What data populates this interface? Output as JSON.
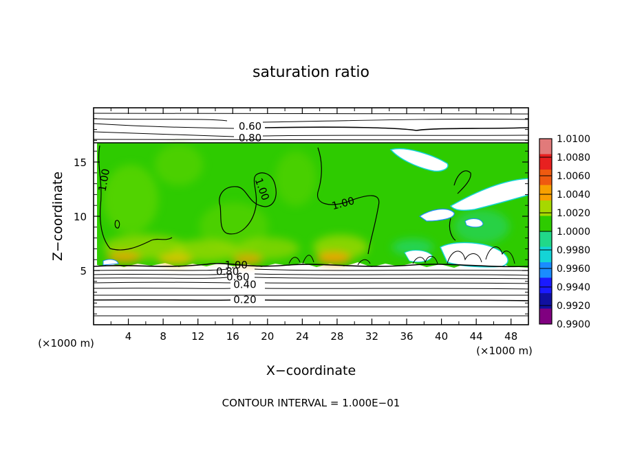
{
  "chart_data": {
    "type": "heatmap",
    "title": "saturation ratio",
    "xlabel": "X−coordinate",
    "ylabel": "Z−coordinate",
    "x_unit_left": "(×1000 m)",
    "x_unit_right": "(×1000 m)",
    "xlim": [
      0,
      50
    ],
    "ylim": [
      0,
      20
    ],
    "xticks": [
      4,
      8,
      12,
      16,
      20,
      24,
      28,
      32,
      36,
      40,
      44,
      48
    ],
    "yticks": [
      5,
      10,
      15
    ],
    "footer": "CONTOUR INTERVAL = 1.000E−01",
    "colorbar": {
      "labels": [
        "1.0100",
        "1.0080",
        "1.0060",
        "1.0040",
        "1.0020",
        "1.0000",
        "0.9980",
        "0.9960",
        "0.9940",
        "0.9920",
        "0.9900"
      ],
      "colors": [
        "#e17a7a",
        "#e82020",
        "#ef5a10",
        "#f7a000",
        "#a6d800",
        "#2ecb00",
        "#21d889",
        "#14d4d6",
        "#1a8cff",
        "#1a1aff",
        "#1010a0",
        "#800080"
      ]
    },
    "contour_labels": [
      {
        "text": "0.60",
        "x": 18.0,
        "y": 18.3
      },
      {
        "text": "0.80",
        "x": 18.0,
        "y": 17.2
      },
      {
        "text": "1.00",
        "x": 1.6,
        "y": 13.6
      },
      {
        "text": "1.00",
        "x": 19.0,
        "y": 12.7
      },
      {
        "text": "1.00",
        "x": 28.8,
        "y": 11.2
      },
      {
        "text": "1.00",
        "x": 16.4,
        "y": 5.5
      },
      {
        "text": "0.80",
        "x": 15.4,
        "y": 4.9
      },
      {
        "text": "0.60",
        "x": 16.6,
        "y": 4.4
      },
      {
        "text": "0.40",
        "x": 17.4,
        "y": 3.7
      },
      {
        "text": "0.20",
        "x": 17.4,
        "y": 2.3
      }
    ],
    "field": {
      "saturated_layer_z": [
        5.3,
        16.7
      ],
      "background_value": 1.0
    }
  }
}
